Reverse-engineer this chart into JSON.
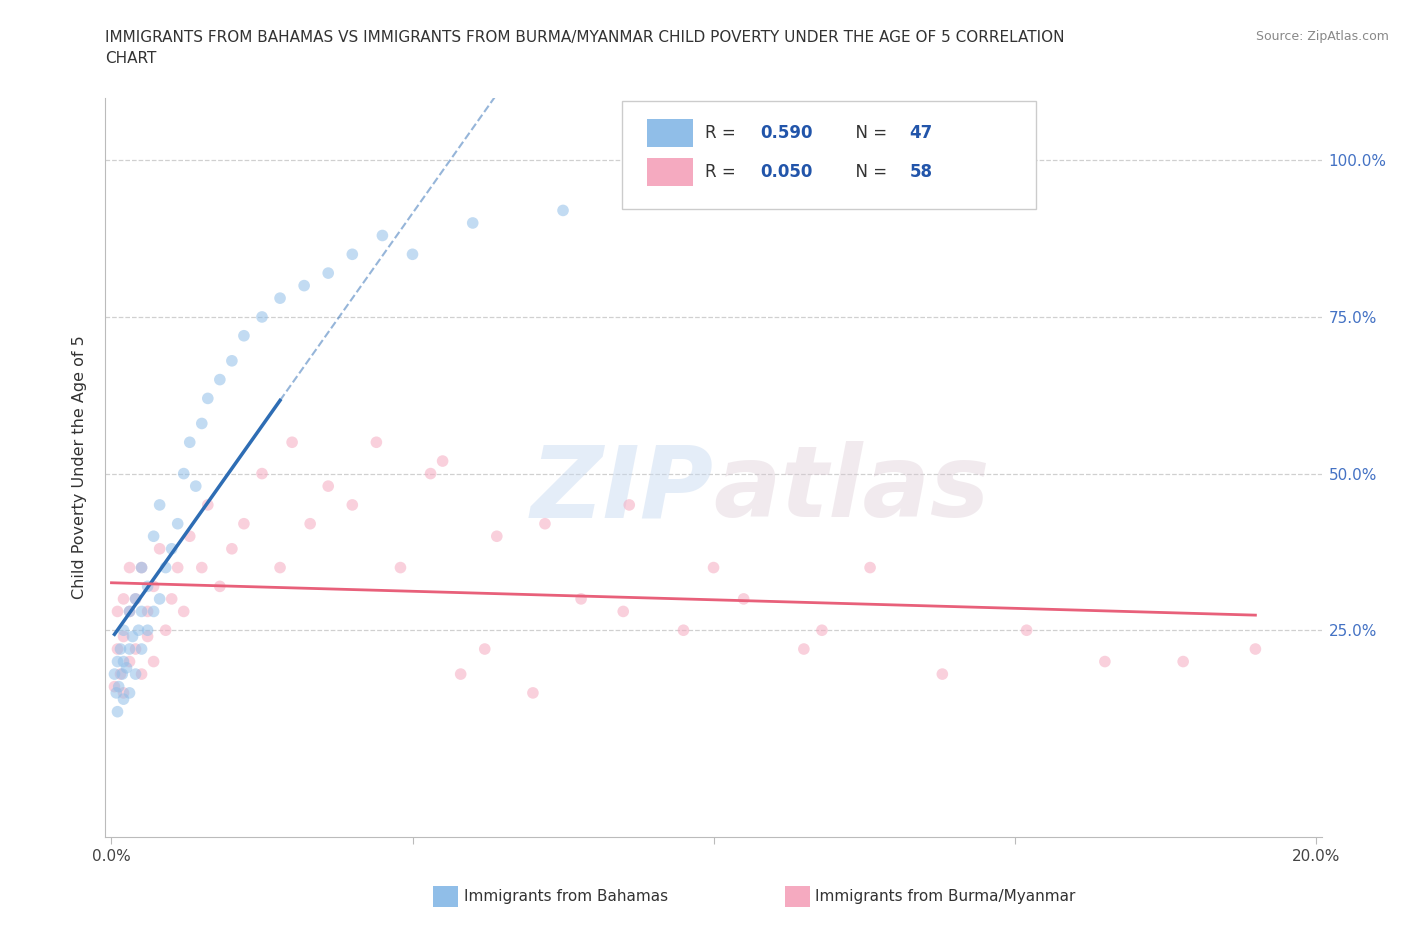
{
  "title_line1": "IMMIGRANTS FROM BAHAMAS VS IMMIGRANTS FROM BURMA/MYANMAR CHILD POVERTY UNDER THE AGE OF 5 CORRELATION",
  "title_line2": "CHART",
  "source": "Source: ZipAtlas.com",
  "ylabel": "Child Poverty Under the Age of 5",
  "xlim": [
    -0.001,
    0.201
  ],
  "ylim": [
    -0.08,
    1.1
  ],
  "ytick_values": [
    0.25,
    0.5,
    0.75,
    1.0
  ],
  "ytick_right_labels": [
    "25.0%",
    "50.0%",
    "75.0%",
    "100.0%"
  ],
  "xtick_positions": [
    0.0,
    0.05,
    0.1,
    0.15,
    0.2
  ],
  "xtick_labels": [
    "0.0%",
    "",
    "",
    "",
    "20.0%"
  ],
  "watermark_zip": "ZIP",
  "watermark_atlas": "atlas",
  "color_bahamas": "#90bee8",
  "color_burma": "#f5aac0",
  "color_line_bahamas": "#2e6db4",
  "color_line_burma": "#e8607a",
  "scatter_alpha": 0.55,
  "marker_size": 70,
  "label_bahamas": "Immigrants from Bahamas",
  "label_burma": "Immigrants from Burma/Myanmar",
  "bahamas_x": [
    0.0005,
    0.0008,
    0.001,
    0.001,
    0.0012,
    0.0015,
    0.0018,
    0.002,
    0.002,
    0.002,
    0.0025,
    0.003,
    0.003,
    0.003,
    0.0035,
    0.004,
    0.004,
    0.0045,
    0.005,
    0.005,
    0.005,
    0.006,
    0.006,
    0.007,
    0.007,
    0.008,
    0.008,
    0.009,
    0.01,
    0.011,
    0.012,
    0.013,
    0.014,
    0.015,
    0.016,
    0.018,
    0.02,
    0.022,
    0.025,
    0.028,
    0.032,
    0.036,
    0.04,
    0.045,
    0.05,
    0.06,
    0.075
  ],
  "bahamas_y": [
    0.18,
    0.15,
    0.12,
    0.2,
    0.16,
    0.22,
    0.18,
    0.14,
    0.2,
    0.25,
    0.19,
    0.15,
    0.22,
    0.28,
    0.24,
    0.18,
    0.3,
    0.25,
    0.22,
    0.28,
    0.35,
    0.25,
    0.32,
    0.28,
    0.4,
    0.3,
    0.45,
    0.35,
    0.38,
    0.42,
    0.5,
    0.55,
    0.48,
    0.58,
    0.62,
    0.65,
    0.68,
    0.72,
    0.75,
    0.78,
    0.8,
    0.82,
    0.85,
    0.88,
    0.85,
    0.9,
    0.92
  ],
  "burma_x": [
    0.0005,
    0.001,
    0.001,
    0.0015,
    0.002,
    0.002,
    0.002,
    0.003,
    0.003,
    0.003,
    0.004,
    0.004,
    0.005,
    0.005,
    0.006,
    0.006,
    0.007,
    0.007,
    0.008,
    0.009,
    0.01,
    0.011,
    0.012,
    0.013,
    0.015,
    0.016,
    0.018,
    0.02,
    0.022,
    0.025,
    0.028,
    0.03,
    0.033,
    0.036,
    0.04,
    0.044,
    0.048,
    0.053,
    0.058,
    0.064,
    0.07,
    0.078,
    0.086,
    0.095,
    0.105,
    0.115,
    0.126,
    0.138,
    0.152,
    0.165,
    0.055,
    0.062,
    0.072,
    0.085,
    0.1,
    0.118,
    0.178,
    0.19
  ],
  "burma_y": [
    0.16,
    0.22,
    0.28,
    0.18,
    0.24,
    0.3,
    0.15,
    0.2,
    0.28,
    0.35,
    0.22,
    0.3,
    0.18,
    0.35,
    0.24,
    0.28,
    0.32,
    0.2,
    0.38,
    0.25,
    0.3,
    0.35,
    0.28,
    0.4,
    0.35,
    0.45,
    0.32,
    0.38,
    0.42,
    0.5,
    0.35,
    0.55,
    0.42,
    0.48,
    0.45,
    0.55,
    0.35,
    0.5,
    0.18,
    0.4,
    0.15,
    0.3,
    0.45,
    0.25,
    0.3,
    0.22,
    0.35,
    0.18,
    0.25,
    0.2,
    0.52,
    0.22,
    0.42,
    0.28,
    0.35,
    0.25,
    0.2,
    0.22
  ]
}
